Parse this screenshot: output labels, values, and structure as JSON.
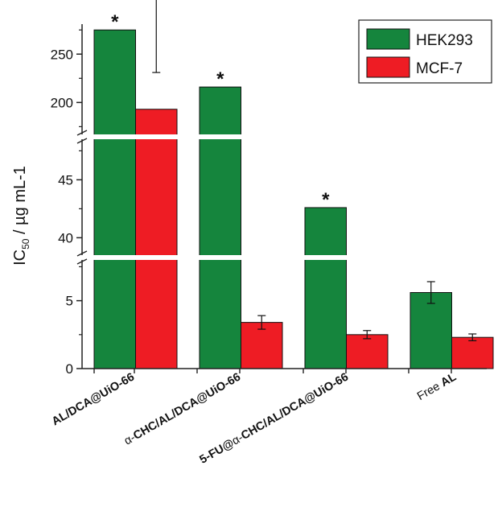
{
  "chart_data": {
    "type": "bar",
    "ylabel": {
      "main": "IC",
      "sub": "50",
      "rest": " / µg mL-1"
    },
    "categories": [
      {
        "parts": [
          {
            "t": "AL/DCA@UiO-66",
            "b": true
          }
        ]
      },
      {
        "parts": [
          {
            "t": "α-",
            "b": false
          },
          {
            "t": "CHC/AL/DCA@UiO-66",
            "b": true
          }
        ]
      },
      {
        "parts": [
          {
            "t": "5-FU@",
            "b": true
          },
          {
            "t": "α-",
            "b": false
          },
          {
            "t": "CHC/AL/DCA@UiO-66",
            "b": true
          }
        ]
      },
      {
        "parts": [
          {
            "t": "Free ",
            "b": false
          },
          {
            "t": "AL",
            "b": true
          }
        ]
      }
    ],
    "series": [
      {
        "name": "HEK293",
        "color": "#15853d",
        "values": [
          275,
          216,
          42.6,
          5.6
        ],
        "errors": [
          0,
          0,
          0,
          0.8
        ],
        "significant": [
          true,
          true,
          true,
          false
        ]
      },
      {
        "name": "MCF-7",
        "color": "#ee1c24",
        "values": [
          193,
          3.4,
          2.5,
          2.3
        ],
        "errors": [
          38,
          0.5,
          0.3,
          0.25
        ],
        "significant": [
          false,
          false,
          false,
          false
        ]
      }
    ],
    "significance_marker": "*",
    "y_axis_segments": [
      {
        "range": [
          0,
          8
        ],
        "ticks": [
          0,
          5
        ]
      },
      {
        "range": [
          38.5,
          48.5
        ],
        "ticks": [
          40,
          45
        ]
      },
      {
        "range": [
          167,
          281
        ],
        "ticks": [
          200,
          250
        ]
      }
    ],
    "legend": {
      "position": "top-right"
    }
  }
}
